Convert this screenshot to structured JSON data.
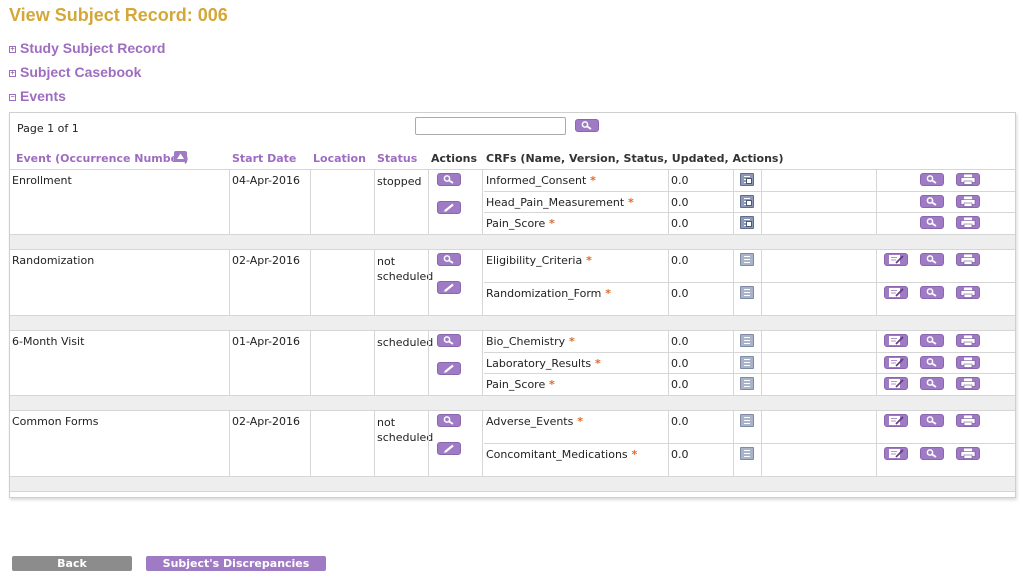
{
  "page": {
    "title": "View Subject Record: 006"
  },
  "sections": {
    "study_subject_record": {
      "toggle": "+",
      "label": "Study Subject Record"
    },
    "subject_casebook": {
      "toggle": "+",
      "label": "Subject Casebook"
    },
    "events": {
      "toggle": "−",
      "label": "Events"
    }
  },
  "pager": {
    "text": "Page 1 of 1",
    "search_value": ""
  },
  "table": {
    "headers": {
      "event": "Event (Occurrence Number)",
      "start_date": "Start Date",
      "location": "Location",
      "status": "Status",
      "actions": "Actions",
      "crfs": "CRFs (Name, Version, Status, Updated, Actions)"
    },
    "sort_icon": "sort-up-icon",
    "events": [
      {
        "name": "Enrollment",
        "start_date": "04-Apr-2016",
        "location": "",
        "status": [
          "stopped"
        ],
        "crfs": [
          {
            "name": "Informed_Consent",
            "required": "*",
            "version": "0.0",
            "status_icon": "crf-completed-icon",
            "actions": [
              "view",
              "print"
            ]
          },
          {
            "name": "Head_Pain_Measurement",
            "required": "*",
            "version": "0.0",
            "status_icon": "crf-completed-icon",
            "actions": [
              "view",
              "print"
            ]
          },
          {
            "name": "Pain_Score",
            "required": "*",
            "version": "0.0",
            "status_icon": "crf-completed-icon",
            "actions": [
              "view",
              "print"
            ]
          }
        ]
      },
      {
        "name": "Randomization",
        "start_date": "02-Apr-2016",
        "location": "",
        "status": [
          "not",
          "scheduled"
        ],
        "crfs": [
          {
            "name": "Eligibility_Criteria",
            "required": "*",
            "version": "0.0",
            "status_icon": "crf-not-started-icon",
            "actions": [
              "enter",
              "view",
              "print"
            ]
          },
          {
            "name": "Randomization_Form",
            "required": "*",
            "version": "0.0",
            "status_icon": "crf-not-started-icon",
            "actions": [
              "enter",
              "view",
              "print"
            ]
          }
        ]
      },
      {
        "name": "6-Month Visit",
        "start_date": "01-Apr-2016",
        "location": "",
        "status": [
          "scheduled"
        ],
        "crfs": [
          {
            "name": "Bio_Chemistry",
            "required": "*",
            "version": "0.0",
            "status_icon": "crf-not-started-icon",
            "actions": [
              "enter",
              "view",
              "print"
            ]
          },
          {
            "name": "Laboratory_Results",
            "required": "*",
            "version": "0.0",
            "status_icon": "crf-not-started-icon",
            "actions": [
              "enter",
              "view",
              "print"
            ]
          },
          {
            "name": "Pain_Score",
            "required": "*",
            "version": "0.0",
            "status_icon": "crf-not-started-icon",
            "actions": [
              "enter",
              "view",
              "print"
            ]
          }
        ]
      },
      {
        "name": "Common Forms",
        "start_date": "02-Apr-2016",
        "location": "",
        "status": [
          "not",
          "scheduled"
        ],
        "crfs": [
          {
            "name": "Adverse_Events",
            "required": "*",
            "version": "0.0",
            "status_icon": "crf-not-started-icon",
            "actions": [
              "enter",
              "view",
              "print"
            ]
          },
          {
            "name": "Concomitant_Medications",
            "required": "*",
            "version": "0.0",
            "status_icon": "crf-not-started-icon",
            "actions": [
              "enter",
              "view",
              "print"
            ]
          }
        ]
      }
    ]
  },
  "buttons": {
    "back": "Back",
    "discrepancies": "Subject's Discrepancies"
  },
  "colors": {
    "title": "#d4a739",
    "accent": "#9e6cc0",
    "button": "#9e7bc4",
    "back_button": "#8c8c8c",
    "required_star": "#e06a2a"
  }
}
